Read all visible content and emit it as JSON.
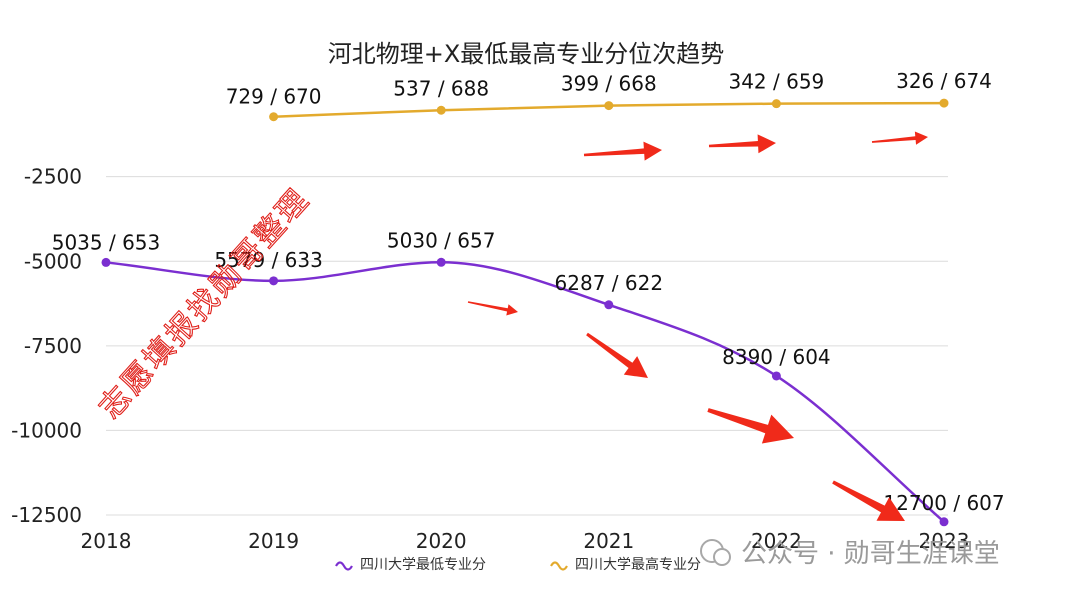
{
  "chart_data": {
    "type": "line",
    "title": "河北物理+X最低最高专业分位次趋势",
    "categories": [
      "2018",
      "2019",
      "2020",
      "2021",
      "2022",
      "2023"
    ],
    "y_ticks": [
      "-2500",
      "-5000",
      "-7500",
      "-10000",
      "-12500"
    ],
    "ylim": [
      -12500,
      -500
    ],
    "grid": true,
    "legend_position": "bottom",
    "series": [
      {
        "name": "四川大学最低专业分",
        "color": "#7B2FD0",
        "values": [
          -5035,
          -5579,
          -5030,
          -6287,
          -8390,
          -12700
        ],
        "labels": [
          "5035 / 653",
          "5579 / 633",
          "5030 / 657",
          "6287 / 622",
          "8390 / 604",
          "12700 / 607"
        ]
      },
      {
        "name": "四川大学最高专业分",
        "color": "#E3AA2D",
        "values": [
          null,
          -729,
          -537,
          -399,
          -342,
          -326
        ],
        "labels": [
          "",
          "729 / 670",
          "537 / 688",
          "399 / 668",
          "342 / 659",
          "326 / 674"
        ]
      }
    ],
    "annotations": {
      "watermark": "志愿填报找勋哥整理",
      "watermark_color": "#E0201A",
      "arrow_color": "#F02A1A",
      "source_badge": "公众号 · 勋哥生涯课堂"
    }
  }
}
